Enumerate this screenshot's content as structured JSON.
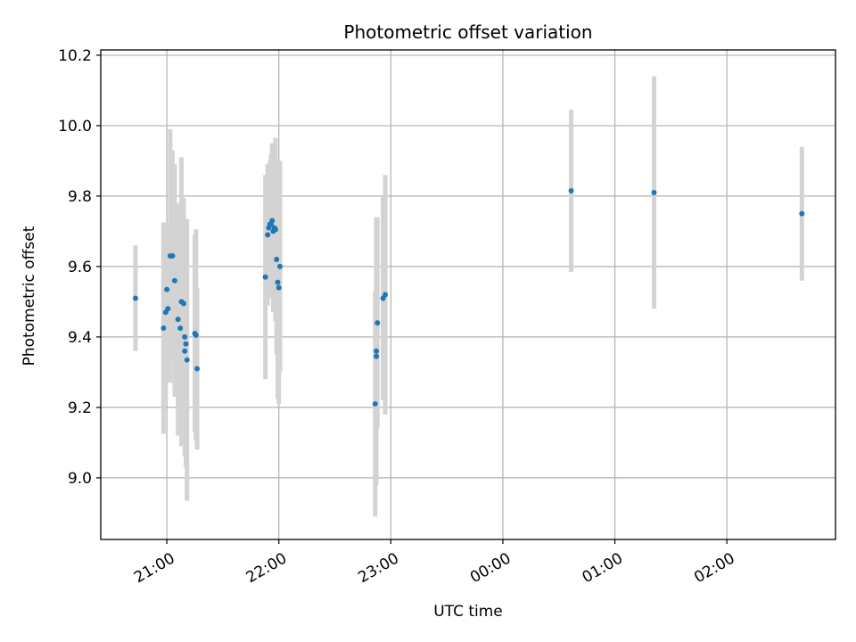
{
  "chart_data": {
    "type": "scatter",
    "title": "Photometric offset variation",
    "xlabel": "UTC time",
    "ylabel": "Photometric offset",
    "x_unit": "hours since 00:00 (negative = previous day)",
    "xlim": [
      -3.59,
      2.97
    ],
    "ylim": [
      8.825,
      10.215
    ],
    "grid": true,
    "x_ticks": [
      {
        "value": -3,
        "label": "21:00"
      },
      {
        "value": -2,
        "label": "22:00"
      },
      {
        "value": -1,
        "label": "23:00"
      },
      {
        "value": 0,
        "label": "00:00"
      },
      {
        "value": 1,
        "label": "01:00"
      },
      {
        "value": 2,
        "label": "02:00"
      }
    ],
    "y_ticks": [
      {
        "value": 9.0,
        "label": "9.0"
      },
      {
        "value": 9.2,
        "label": "9.2"
      },
      {
        "value": 9.4,
        "label": "9.4"
      },
      {
        "value": 9.6,
        "label": "9.6"
      },
      {
        "value": 9.8,
        "label": "9.8"
      },
      {
        "value": 10.0,
        "label": "10.0"
      },
      {
        "value": 10.2,
        "label": "10.2"
      }
    ],
    "colors": {
      "point": "#1f77b4",
      "errorbar": "#d3d3d3",
      "grid": "#b0b0b0"
    },
    "series": [
      {
        "name": "offset",
        "points": [
          {
            "x": -3.28,
            "y": 9.51,
            "err": 0.15
          },
          {
            "x": -3.03,
            "y": 9.425,
            "err": 0.3
          },
          {
            "x": -3.01,
            "y": 9.47,
            "err": 0.25
          },
          {
            "x": -3.0,
            "y": 9.535,
            "err": 0.18
          },
          {
            "x": -2.99,
            "y": 9.48,
            "err": 0.2
          },
          {
            "x": -2.97,
            "y": 9.63,
            "err": 0.36
          },
          {
            "x": -2.95,
            "y": 9.63,
            "err": 0.3
          },
          {
            "x": -2.93,
            "y": 9.56,
            "err": 0.33
          },
          {
            "x": -2.9,
            "y": 9.45,
            "err": 0.33
          },
          {
            "x": -2.88,
            "y": 9.425,
            "err": 0.25
          },
          {
            "x": -2.87,
            "y": 9.5,
            "err": 0.41
          },
          {
            "x": -2.85,
            "y": 9.495,
            "err": 0.3
          },
          {
            "x": -2.84,
            "y": 9.4,
            "err": 0.3
          },
          {
            "x": -2.84,
            "y": 9.36,
            "err": 0.3
          },
          {
            "x": -2.83,
            "y": 9.38,
            "err": 0.35
          },
          {
            "x": -2.82,
            "y": 9.335,
            "err": 0.4
          },
          {
            "x": -2.75,
            "y": 9.41,
            "err": 0.28
          },
          {
            "x": -2.74,
            "y": 9.405,
            "err": 0.3
          },
          {
            "x": -2.73,
            "y": 9.31,
            "err": 0.23
          },
          {
            "x": -2.12,
            "y": 9.57,
            "err": 0.29
          },
          {
            "x": -2.1,
            "y": 9.69,
            "err": 0.2
          },
          {
            "x": -2.09,
            "y": 9.71,
            "err": 0.15
          },
          {
            "x": -2.08,
            "y": 9.72,
            "err": 0.18
          },
          {
            "x": -2.07,
            "y": 9.72,
            "err": 0.2
          },
          {
            "x": -2.06,
            "y": 9.73,
            "err": 0.22
          },
          {
            "x": -2.05,
            "y": 9.7,
            "err": 0.23
          },
          {
            "x": -2.04,
            "y": 9.71,
            "err": 0.24
          },
          {
            "x": -2.03,
            "y": 9.705,
            "err": 0.26
          },
          {
            "x": -2.02,
            "y": 9.62,
            "err": 0.27
          },
          {
            "x": -2.01,
            "y": 9.555,
            "err": 0.33
          },
          {
            "x": -2.0,
            "y": 9.54,
            "err": 0.33
          },
          {
            "x": -1.99,
            "y": 9.6,
            "err": 0.3
          },
          {
            "x": -1.14,
            "y": 9.21,
            "err": 0.32
          },
          {
            "x": -1.13,
            "y": 9.345,
            "err": 0.25
          },
          {
            "x": -1.13,
            "y": 9.36,
            "err": 0.38
          },
          {
            "x": -1.12,
            "y": 9.44,
            "err": 0.3
          },
          {
            "x": -1.07,
            "y": 9.51,
            "err": 0.29
          },
          {
            "x": -1.05,
            "y": 9.52,
            "err": 0.34
          },
          {
            "x": 0.61,
            "y": 9.815,
            "err": 0.23
          },
          {
            "x": 1.35,
            "y": 9.81,
            "err": 0.33
          },
          {
            "x": 2.67,
            "y": 9.75,
            "err": 0.19
          }
        ]
      }
    ]
  }
}
